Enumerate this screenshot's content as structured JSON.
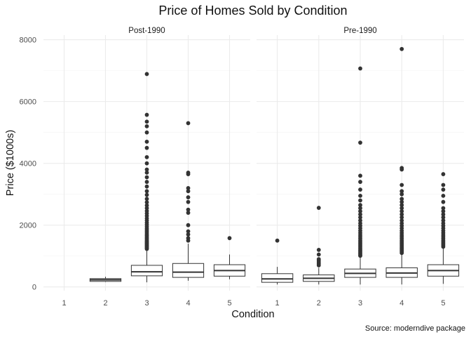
{
  "chart_data": {
    "type": "boxplot",
    "title": "Price of Homes Sold by Condition",
    "xlabel": "Condition",
    "ylabel": "Price ($1000s)",
    "caption": "Source: moderndive package",
    "ylim": [
      -120,
      8150
    ],
    "yticks": [
      0,
      2000,
      4000,
      6000,
      8000
    ],
    "categories": [
      "1",
      "2",
      "3",
      "4",
      "5"
    ],
    "facets": [
      {
        "label": "Post-1990",
        "boxes": [
          {
            "category": "2",
            "q1": 180,
            "median": 230,
            "q3": 270,
            "whisker_low": 160,
            "whisker_high": 330,
            "outliers": []
          },
          {
            "category": "3",
            "q1": 360,
            "median": 490,
            "q3": 700,
            "whisker_low": 150,
            "whisker_high": 1210,
            "outliers": [
              1230,
              1260,
              1290,
              1320,
              1350,
              1380,
              1410,
              1440,
              1470,
              1500,
              1540,
              1580,
              1620,
              1660,
              1700,
              1750,
              1800,
              1850,
              1900,
              1960,
              2020,
              2080,
              2150,
              2220,
              2300,
              2380,
              2460,
              2550,
              2640,
              2740,
              2850,
              2980,
              3100,
              3250,
              3400,
              3550,
              3700,
              3800,
              4000,
              4200,
              4500,
              4700,
              5000,
              5200,
              5350,
              5570,
              6890
            ]
          },
          {
            "category": "4",
            "q1": 310,
            "median": 480,
            "q3": 760,
            "whisker_low": 200,
            "whisker_high": 1400,
            "outliers": [
              1500,
              1580,
              1700,
              1800,
              2000,
              2400,
              2500,
              2750,
              2900,
              3100,
              3200,
              3650,
              3700,
              5300
            ]
          },
          {
            "category": "5",
            "q1": 350,
            "median": 530,
            "q3": 720,
            "whisker_low": 250,
            "whisker_high": 1050,
            "outliers": [
              1580
            ]
          }
        ]
      },
      {
        "label": "Pre-1990",
        "boxes": [
          {
            "category": "1",
            "q1": 150,
            "median": 260,
            "q3": 430,
            "whisker_low": 80,
            "whisker_high": 650,
            "outliers": [
              1500
            ]
          },
          {
            "category": "2",
            "q1": 180,
            "median": 280,
            "q3": 390,
            "whisker_low": 80,
            "whisker_high": 620,
            "outliers": [
              700,
              750,
              800,
              850,
              900,
              1050,
              1200,
              2560
            ]
          },
          {
            "category": "3",
            "q1": 310,
            "median": 440,
            "q3": 580,
            "whisker_low": 80,
            "whisker_high": 990,
            "outliers": [
              1010,
              1040,
              1080,
              1120,
              1160,
              1200,
              1250,
              1300,
              1350,
              1400,
              1450,
              1500,
              1560,
              1620,
              1680,
              1750,
              1820,
              1900,
              1980,
              2060,
              2150,
              2250,
              2350,
              2450,
              2550,
              2650,
              2800,
              2950,
              3150,
              3400,
              3600,
              4670,
              7070
            ]
          },
          {
            "category": "4",
            "q1": 310,
            "median": 450,
            "q3": 620,
            "whisker_low": 80,
            "whisker_high": 1080,
            "outliers": [
              1100,
              1140,
              1180,
              1220,
              1260,
              1300,
              1350,
              1400,
              1450,
              1500,
              1560,
              1620,
              1680,
              1750,
              1820,
              1900,
              1980,
              2060,
              2150,
              2250,
              2350,
              2450,
              2550,
              2650,
              2750,
              2850,
              3000,
              3100,
              3300,
              3800,
              3850,
              7700
            ]
          },
          {
            "category": "5",
            "q1": 350,
            "median": 530,
            "q3": 720,
            "whisker_low": 100,
            "whisker_high": 1250,
            "outliers": [
              1300,
              1350,
              1400,
              1450,
              1500,
              1560,
              1620,
              1680,
              1750,
              1820,
              1900,
              1980,
              2060,
              2150,
              2250,
              2350,
              2450,
              2550,
              2750,
              2950,
              3150,
              3300,
              3650
            ]
          }
        ]
      }
    ],
    "grid": true
  }
}
